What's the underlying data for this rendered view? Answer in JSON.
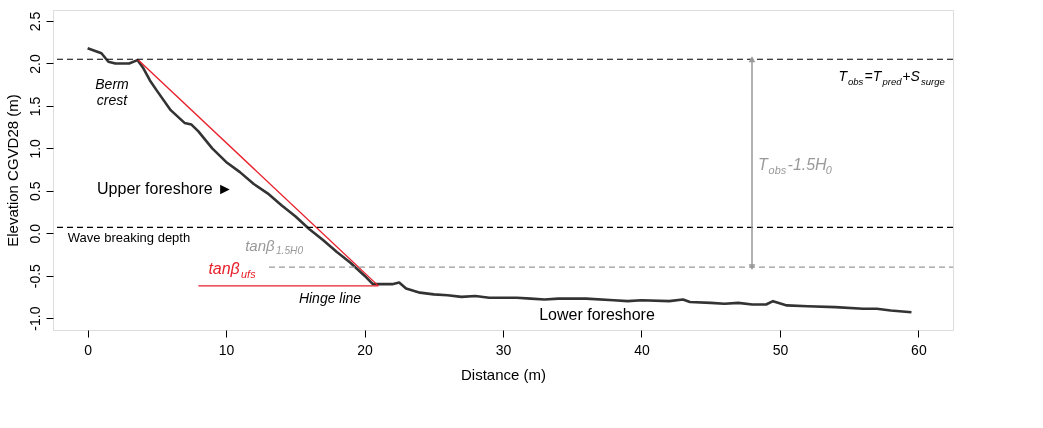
{
  "chart_data": {
    "type": "line",
    "xlabel": "Distance (m)",
    "ylabel": "Elevation CGVD28 (m)",
    "x": [
      0,
      1,
      1.5,
      2,
      3,
      3.6,
      4,
      4.5,
      5,
      6,
      7,
      7.5,
      8,
      9,
      10,
      11,
      12,
      13,
      14,
      15,
      16,
      17,
      18,
      19,
      20,
      20.6,
      21,
      22,
      22.5,
      23,
      24,
      25,
      26,
      27,
      28,
      29,
      30,
      31,
      32,
      33,
      34,
      36,
      38,
      39,
      40,
      42,
      43,
      43.5,
      45,
      46,
      47,
      48,
      49,
      49.5,
      50.5,
      52,
      54,
      56,
      57,
      58,
      59.5
    ],
    "series": [
      {
        "color": "#333333",
        "values": [
          2.18,
          2.12,
          2.02,
          2.0,
          2.0,
          2.04,
          1.95,
          1.8,
          1.68,
          1.45,
          1.3,
          1.28,
          1.2,
          1.0,
          0.84,
          0.72,
          0.58,
          0.47,
          0.33,
          0.2,
          0.05,
          -0.08,
          -0.22,
          -0.35,
          -0.5,
          -0.6,
          -0.6,
          -0.6,
          -0.58,
          -0.65,
          -0.7,
          -0.72,
          -0.73,
          -0.75,
          -0.74,
          -0.76,
          -0.76,
          -0.76,
          -0.77,
          -0.78,
          -0.77,
          -0.77,
          -0.79,
          -0.8,
          -0.79,
          -0.8,
          -0.78,
          -0.81,
          -0.82,
          -0.83,
          -0.82,
          -0.84,
          -0.84,
          -0.8,
          -0.85,
          -0.86,
          -0.87,
          -0.89,
          -0.89,
          -0.91,
          -0.93
        ]
      },
      {
        "type": "line",
        "color": "#e8202a",
        "x": [
          3.6,
          21
        ],
        "values": [
          2.05,
          -0.62
        ]
      },
      {
        "type": "line",
        "color": "#e8202a",
        "x": [
          8,
          21
        ],
        "values": [
          -0.62,
          -0.62
        ]
      },
      {
        "type": "line",
        "color": "#999999",
        "line_style": "dashed",
        "x": [
          13.1,
          62.5
        ],
        "values": [
          -0.4,
          -0.4
        ]
      }
    ],
    "ref_lines": [
      {
        "axis": "y",
        "value": 2.05,
        "color": "#000000",
        "line_style": "dashed"
      },
      {
        "axis": "y",
        "value": 0.07,
        "color": "#000000",
        "line_style": "dashed"
      }
    ],
    "annotations": [
      "Berm\ncrest",
      "Upper foreshore ►",
      "Wave breaking depth",
      "tanβ$_{1.5H0}$",
      "tanβ$_{ufs}$",
      "Hinge line",
      "Lower foreshore",
      "T$_{obs}$=T$_{pred}$+S$_{surge}$",
      "T$_{obs}$-1.5H$_{0}$"
    ],
    "xlim": [
      -2.5,
      62.5
    ],
    "ylim": [
      -1.14,
      2.63
    ],
    "xticks": [
      0,
      10,
      20,
      30,
      40,
      50,
      60
    ],
    "yticks": [
      {
        "value": -1,
        "label": "-1.0"
      },
      {
        "value": -0.5,
        "label": "-0.5"
      },
      {
        "value": 0,
        "label": "0.0"
      },
      {
        "value": 0.5,
        "label": "0.5"
      },
      {
        "value": 1,
        "label": "1.0"
      },
      {
        "value": 1.5,
        "label": "1.5"
      },
      {
        "value": 2,
        "label": "2.0"
      },
      {
        "value": 2.5,
        "label": "2.5"
      }
    ],
    "grid": false,
    "marker": "none"
  }
}
